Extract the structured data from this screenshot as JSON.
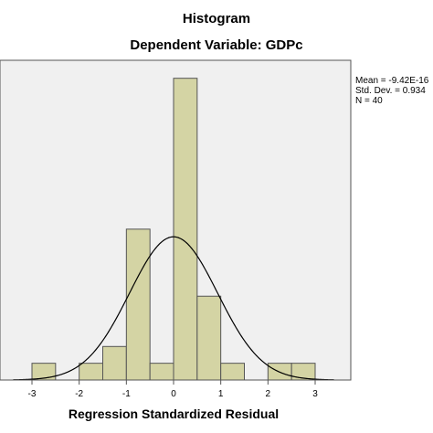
{
  "chart_data": {
    "type": "bar",
    "title": "Histogram",
    "subtitle": "Dependent Variable: GDPc",
    "xlabel": "Regression Standardized Residual",
    "ylabel": "",
    "stats": {
      "mean": "Mean = -9.42E-16",
      "std_dev": "Std. Dev. = 0.934",
      "n": "N = 40"
    },
    "bin_width": 0.5,
    "bins": [
      {
        "start": -3.0,
        "end": -2.5,
        "count": 1
      },
      {
        "start": -2.5,
        "end": -2.0,
        "count": 0
      },
      {
        "start": -2.0,
        "end": -1.5,
        "count": 1
      },
      {
        "start": -1.5,
        "end": -1.0,
        "count": 2
      },
      {
        "start": -1.0,
        "end": -0.5,
        "count": 9
      },
      {
        "start": -0.5,
        "end": 0.0,
        "count": 1
      },
      {
        "start": 0.0,
        "end": 0.5,
        "count": 18
      },
      {
        "start": 0.5,
        "end": 1.0,
        "count": 5
      },
      {
        "start": 1.0,
        "end": 1.5,
        "count": 1
      },
      {
        "start": 1.5,
        "end": 2.0,
        "count": 0
      },
      {
        "start": 2.0,
        "end": 2.5,
        "count": 1
      },
      {
        "start": 2.5,
        "end": 3.0,
        "count": 1
      }
    ],
    "x_ticks": [
      "-3",
      "-2",
      "-1",
      "0",
      "1",
      "2",
      "3"
    ],
    "xlim": [
      -3.4,
      3.4
    ],
    "ylim": [
      0,
      18.8
    ],
    "normal_curve": {
      "mean": 0,
      "sd": 0.934,
      "n": 40
    },
    "grid": false,
    "colors": {
      "plot_background": "#f0f0f0",
      "bar_fill": "#d4d4a4",
      "bar_stroke": "#555555",
      "curve": "#000000"
    }
  }
}
